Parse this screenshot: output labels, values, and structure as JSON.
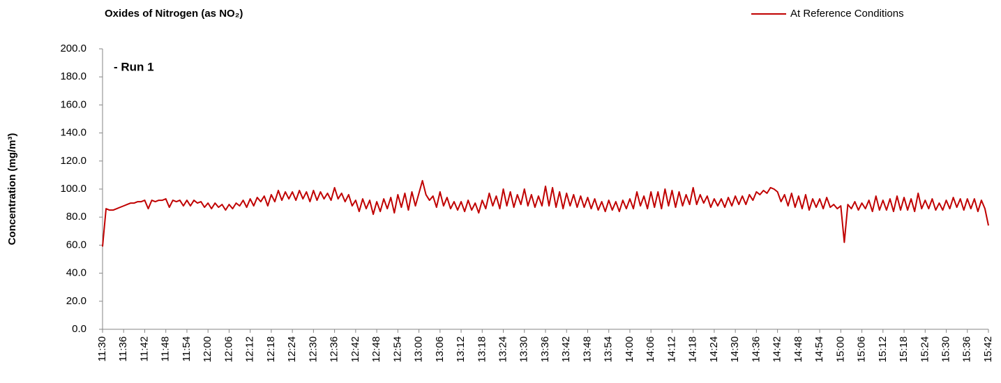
{
  "chart_data": {
    "type": "line",
    "title": "Oxides of Nitrogen (as NO₂)",
    "y_label": "Concentration (mg/m³)",
    "annotation": "- Run 1",
    "categories": [
      "11:30",
      null,
      null,
      null,
      null,
      null,
      "11:36",
      null,
      null,
      null,
      null,
      null,
      "11:42",
      null,
      null,
      null,
      null,
      null,
      "11:48",
      null,
      null,
      null,
      null,
      null,
      "11:54",
      null,
      null,
      null,
      null,
      null,
      "12:00",
      null,
      null,
      null,
      null,
      null,
      "12:06",
      null,
      null,
      null,
      null,
      null,
      "12:12",
      null,
      null,
      null,
      null,
      null,
      "12:18",
      null,
      null,
      null,
      null,
      null,
      "12:24",
      null,
      null,
      null,
      null,
      null,
      "12:30",
      null,
      null,
      null,
      null,
      null,
      "12:36",
      null,
      null,
      null,
      null,
      null,
      "12:42",
      null,
      null,
      null,
      null,
      null,
      "12:48",
      null,
      null,
      null,
      null,
      null,
      "12:54",
      null,
      null,
      null,
      null,
      null,
      "13:00",
      null,
      null,
      null,
      null,
      null,
      "13:06",
      null,
      null,
      null,
      null,
      null,
      "13:12",
      null,
      null,
      null,
      null,
      null,
      "13:18",
      null,
      null,
      null,
      null,
      null,
      "13:24",
      null,
      null,
      null,
      null,
      null,
      "13:30",
      null,
      null,
      null,
      null,
      null,
      "13:36",
      null,
      null,
      null,
      null,
      null,
      "13:42",
      null,
      null,
      null,
      null,
      null,
      "13:48",
      null,
      null,
      null,
      null,
      null,
      "13:54",
      null,
      null,
      null,
      null,
      null,
      "14:00",
      null,
      null,
      null,
      null,
      null,
      "14:06",
      null,
      null,
      null,
      null,
      null,
      "14:12",
      null,
      null,
      null,
      null,
      null,
      "14:18",
      null,
      null,
      null,
      null,
      null,
      "14:24",
      null,
      null,
      null,
      null,
      null,
      "14:30",
      null,
      null,
      null,
      null,
      null,
      "14:36",
      null,
      null,
      null,
      null,
      null,
      "14:42",
      null,
      null,
      null,
      null,
      null,
      "14:48",
      null,
      null,
      null,
      null,
      null,
      "14:54",
      null,
      null,
      null,
      null,
      null,
      "15:00",
      null,
      null,
      null,
      null,
      null,
      "15:06",
      null,
      null,
      null,
      null,
      null,
      "15:12",
      null,
      null,
      null,
      null,
      null,
      "15:18",
      null,
      null,
      null,
      null,
      null,
      "15:24",
      null,
      null,
      null,
      null,
      null,
      "15:30",
      null,
      null,
      null,
      null,
      null,
      "15:36",
      null,
      null,
      null,
      null,
      null,
      "15:42"
    ],
    "series": [
      {
        "name": "At Reference Conditions",
        "color": "#c00000",
        "values": [
          59,
          86,
          85,
          85,
          86,
          87,
          88,
          89,
          90,
          90,
          91,
          91,
          92,
          86,
          92,
          91,
          92,
          92,
          93,
          87,
          92,
          91,
          92,
          88,
          92,
          88,
          92,
          90,
          91,
          87,
          90,
          86,
          90,
          87,
          89,
          85,
          89,
          86,
          90,
          88,
          92,
          87,
          93,
          88,
          94,
          91,
          95,
          88,
          96,
          91,
          99,
          92,
          98,
          93,
          98,
          92,
          99,
          93,
          98,
          91,
          99,
          92,
          98,
          93,
          97,
          92,
          101,
          93,
          97,
          91,
          96,
          88,
          92,
          84,
          93,
          86,
          92,
          82,
          91,
          84,
          93,
          86,
          94,
          83,
          96,
          87,
          97,
          85,
          98,
          88,
          97,
          106,
          96,
          92,
          95,
          87,
          98,
          88,
          94,
          86,
          91,
          85,
          91,
          84,
          92,
          85,
          90,
          83,
          92,
          86,
          97,
          88,
          95,
          86,
          100,
          88,
          98,
          87,
          96,
          89,
          100,
          88,
          96,
          87,
          95,
          88,
          102,
          88,
          101,
          87,
          98,
          86,
          97,
          88,
          96,
          87,
          95,
          87,
          94,
          86,
          93,
          85,
          91,
          84,
          92,
          85,
          91,
          84,
          92,
          86,
          93,
          86,
          98,
          88,
          95,
          86,
          98,
          87,
          98,
          86,
          100,
          88,
          99,
          87,
          98,
          88,
          96,
          89,
          101,
          89,
          96,
          90,
          95,
          87,
          93,
          88,
          93,
          87,
          94,
          88,
          95,
          89,
          95,
          89,
          96,
          92,
          98,
          96,
          99,
          97,
          101,
          100,
          98,
          91,
          96,
          88,
          97,
          87,
          95,
          86,
          96,
          85,
          93,
          87,
          93,
          86,
          94,
          87,
          89,
          86,
          88,
          62,
          89,
          86,
          91,
          85,
          90,
          86,
          92,
          84,
          95,
          85,
          92,
          85,
          93,
          84,
          95,
          85,
          94,
          85,
          93,
          84,
          97,
          86,
          92,
          86,
          93,
          85,
          90,
          85,
          92,
          86,
          94,
          87,
          93,
          85,
          93,
          86,
          93,
          84,
          92,
          86,
          74
        ]
      }
    ],
    "ylim": [
      0,
      200
    ],
    "yticks": [
      {
        "value": 0,
        "label": "0.0"
      },
      {
        "value": 20,
        "label": "20.0"
      },
      {
        "value": 40,
        "label": "40.0"
      },
      {
        "value": 60,
        "label": "60.0"
      },
      {
        "value": 80,
        "label": "80.0"
      },
      {
        "value": 100,
        "label": "100.0"
      },
      {
        "value": 120,
        "label": "120.0"
      },
      {
        "value": 140,
        "label": "140.0"
      },
      {
        "value": 160,
        "label": "160.0"
      },
      {
        "value": 180,
        "label": "180.0"
      },
      {
        "value": 200,
        "label": "200.0"
      }
    ],
    "legend": "top-right"
  }
}
